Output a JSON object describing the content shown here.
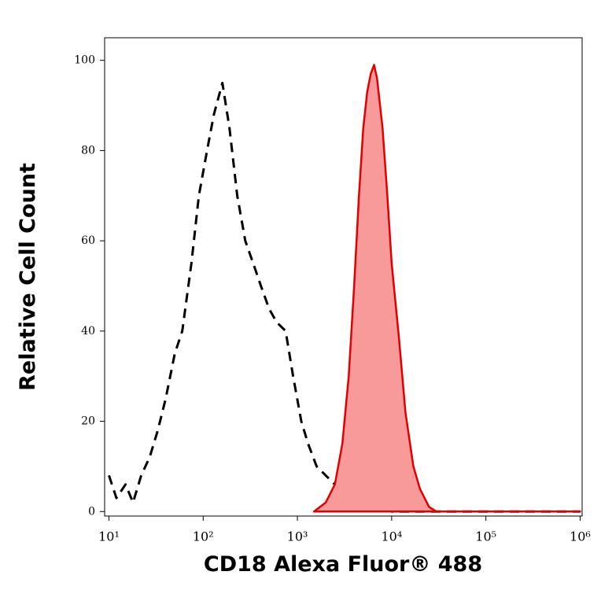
{
  "chart_data": {
    "type": "histogram-overlay",
    "x_label": "CD18 Alexa Fluor® 488",
    "y_label": "Relative Cell Count",
    "x_scale": "log",
    "xlim": [
      9,
      1050000
    ],
    "ylim": [
      -1,
      105
    ],
    "xticks": [
      {
        "value": 10,
        "label": "10¹"
      },
      {
        "value": 100,
        "label": "10²"
      },
      {
        "value": 1000,
        "label": "10³"
      },
      {
        "value": 10000,
        "label": "10⁴"
      },
      {
        "value": 100000,
        "label": "10⁵"
      },
      {
        "value": 1000000,
        "label": "10⁶"
      }
    ],
    "yticks": [
      0,
      20,
      40,
      60,
      80,
      100
    ],
    "series": [
      {
        "color": "#000000",
        "dashed": true,
        "filled": false,
        "x": [
          10,
          12,
          15,
          18,
          22,
          27,
          33,
          40,
          50,
          60,
          75,
          90,
          110,
          130,
          160,
          190,
          230,
          280,
          340,
          410,
          500,
          600,
          750,
          900,
          1100,
          1300,
          1600,
          2000,
          2500,
          3000,
          4000,
          5000,
          6000,
          8000,
          10000,
          1000000
        ],
        "values": [
          8,
          3,
          6,
          2,
          8,
          12,
          18,
          25,
          35,
          40,
          55,
          70,
          80,
          88,
          95,
          85,
          70,
          60,
          55,
          50,
          45,
          42,
          40,
          30,
          20,
          15,
          10,
          8,
          6,
          5,
          3,
          4,
          2,
          1,
          0,
          0
        ]
      },
      {
        "color": "#e00000",
        "fill": "#f99a9a",
        "dashed": false,
        "filled": true,
        "x": [
          1500,
          2000,
          2500,
          3000,
          3500,
          4000,
          4500,
          5000,
          5500,
          6000,
          6500,
          7000,
          8000,
          9000,
          10000,
          12000,
          14000,
          17000,
          20000,
          25000,
          30000,
          50000,
          100000,
          1000000
        ],
        "values": [
          0,
          2,
          6,
          15,
          30,
          50,
          70,
          85,
          93,
          97,
          99,
          96,
          85,
          70,
          55,
          38,
          22,
          10,
          5,
          1,
          0,
          0,
          0,
          0
        ]
      }
    ]
  }
}
